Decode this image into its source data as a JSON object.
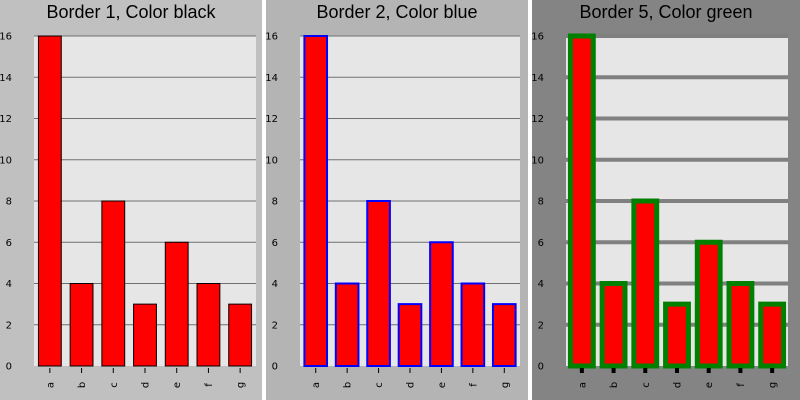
{
  "chart_data": [
    {
      "type": "bar",
      "title": "Border 1, Color black",
      "categories": [
        "a",
        "b",
        "c",
        "d",
        "e",
        "f",
        "g"
      ],
      "values": [
        16,
        4,
        8,
        3,
        6,
        4,
        3
      ],
      "ylim": [
        0,
        16
      ],
      "yticks": [
        0,
        2,
        4,
        6,
        8,
        10,
        12,
        14,
        16
      ],
      "bar_color": "#ff0000",
      "border_color": "#000000",
      "panel_bg": "#c0c0c0",
      "plot_bg": "#e6e6e6",
      "grid": true,
      "xlabel": "",
      "ylabel": ""
    },
    {
      "type": "bar",
      "title": "Border 2, Color blue",
      "categories": [
        "a",
        "b",
        "c",
        "d",
        "e",
        "f",
        "g"
      ],
      "values": [
        16,
        4,
        8,
        3,
        6,
        4,
        3
      ],
      "ylim": [
        0,
        16
      ],
      "yticks": [
        0,
        2,
        4,
        6,
        8,
        10,
        12,
        14,
        16
      ],
      "bar_color": "#ff0000",
      "border_color": "#0000ff",
      "panel_bg": "#b4b4b4",
      "plot_bg": "#e6e6e6",
      "grid": true,
      "xlabel": "",
      "ylabel": ""
    },
    {
      "type": "bar",
      "title": "Border 5, Color green",
      "categories": [
        "a",
        "b",
        "c",
        "d",
        "e",
        "f",
        "g"
      ],
      "values": [
        16,
        4,
        8,
        3,
        6,
        4,
        3
      ],
      "ylim": [
        0,
        16
      ],
      "yticks": [
        0,
        2,
        4,
        6,
        8,
        10,
        12,
        14,
        16
      ],
      "bar_color": "#ff0000",
      "border_color": "#008000",
      "panel_bg": "#848484",
      "plot_bg": "#e6e6e6",
      "grid": true,
      "xlabel": "",
      "ylabel": ""
    }
  ]
}
